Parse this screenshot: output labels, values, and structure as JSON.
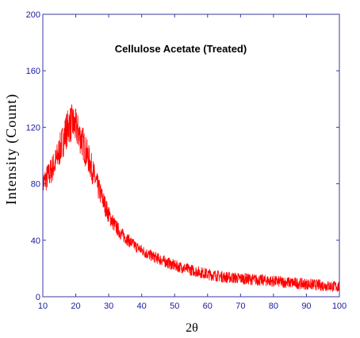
{
  "chart_data": {
    "type": "line",
    "title": "Cellulose Acetate (Treated)",
    "xlabel": "2θ",
    "ylabel": "Intensity (Count)",
    "xlim": [
      10,
      100
    ],
    "ylim": [
      0,
      200
    ],
    "x_ticks": [
      10,
      20,
      30,
      40,
      50,
      60,
      70,
      80,
      90,
      100
    ],
    "y_ticks": [
      0,
      40,
      80,
      120,
      160,
      200
    ],
    "grid": false,
    "legend": "none",
    "series": [
      {
        "color": "#ff0000",
        "x": [
          10,
          12,
          14,
          15,
          16,
          17,
          18,
          19,
          20,
          21,
          22,
          23,
          24,
          25,
          26,
          28,
          30,
          32,
          34,
          36,
          38,
          40,
          42,
          44,
          46,
          48,
          50,
          55,
          60,
          65,
          70,
          75,
          80,
          85,
          90,
          95,
          100
        ],
        "y": [
          80,
          87,
          96,
          103,
          110,
          117,
          122,
          123,
          120,
          115,
          110,
          103,
          97,
          90,
          82,
          70,
          58,
          50,
          44,
          40,
          36,
          33,
          30,
          28,
          26,
          24,
          22,
          19,
          16,
          14,
          13,
          12,
          11,
          10,
          9,
          8,
          7
        ]
      }
    ]
  }
}
